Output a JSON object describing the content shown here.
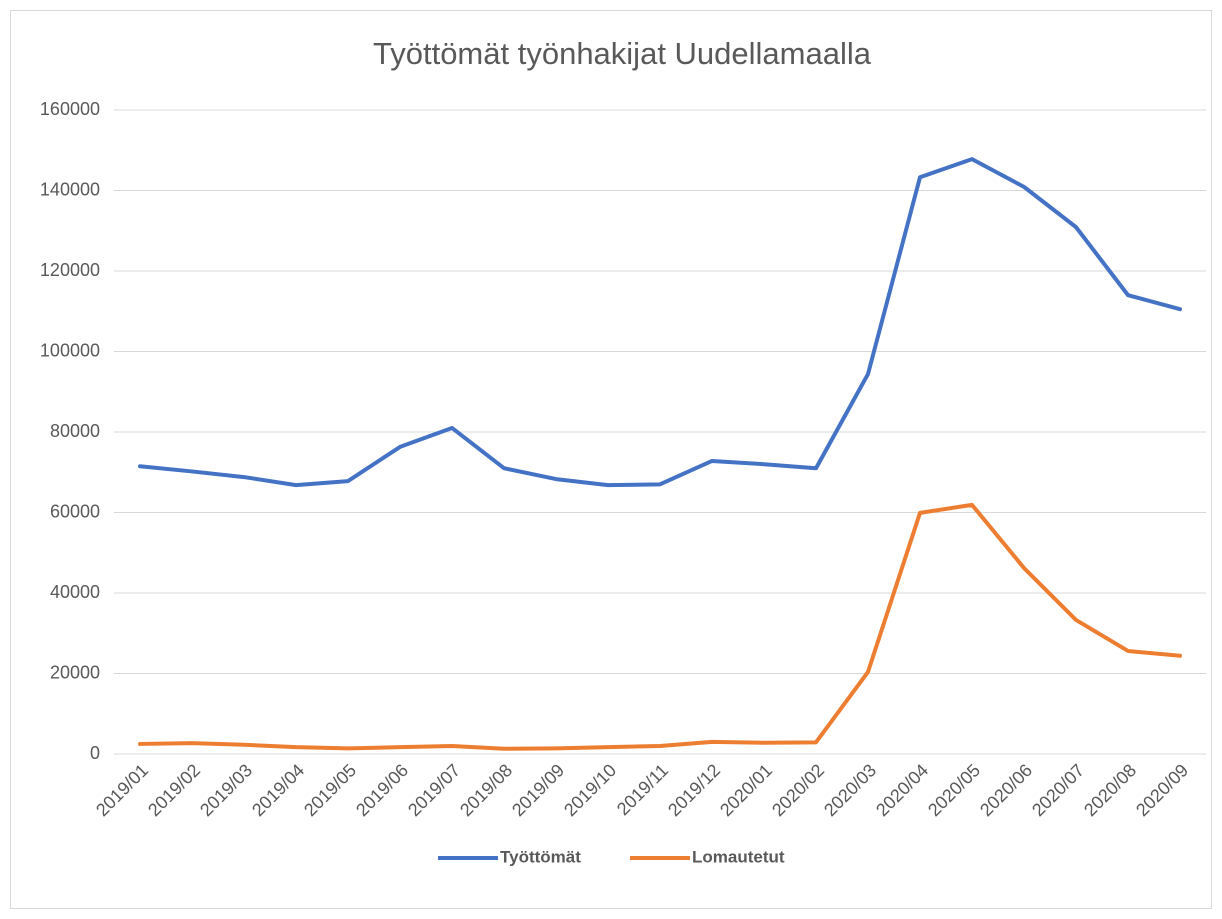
{
  "chart_data": {
    "type": "line",
    "title": "Työttömät työnhakijat Uudellamaalla",
    "x": [
      "2019/01",
      "2019/02",
      "2019/03",
      "2019/04",
      "2019/05",
      "2019/06",
      "2019/07",
      "2019/08",
      "2019/09",
      "2019/10",
      "2019/11",
      "2019/12",
      "2020/01",
      "2020/02",
      "2020/03",
      "2020/04",
      "2020/05",
      "2020/06",
      "2020/07",
      "2020/08",
      "2020/09"
    ],
    "series": [
      {
        "name": "Työttömät",
        "color": "#4472c4",
        "values": [
          71500,
          70200,
          68800,
          66800,
          67800,
          76300,
          81000,
          71000,
          68300,
          66800,
          67000,
          72800,
          72000,
          71000,
          94400,
          143300,
          147800,
          140900,
          130900,
          114000,
          110500
        ]
      },
      {
        "name": "Lomautetut",
        "color": "#ed7d31",
        "values": [
          2500,
          2700,
          2300,
          1700,
          1400,
          1700,
          2000,
          1300,
          1400,
          1700,
          2000,
          3000,
          2800,
          2900,
          20400,
          59900,
          61900,
          46200,
          33300,
          25600,
          24400
        ]
      }
    ],
    "ylim": [
      0,
      160000
    ],
    "yticks": [
      0,
      20000,
      40000,
      60000,
      80000,
      100000,
      120000,
      140000,
      160000
    ],
    "grid": true,
    "legend": "bottom"
  }
}
